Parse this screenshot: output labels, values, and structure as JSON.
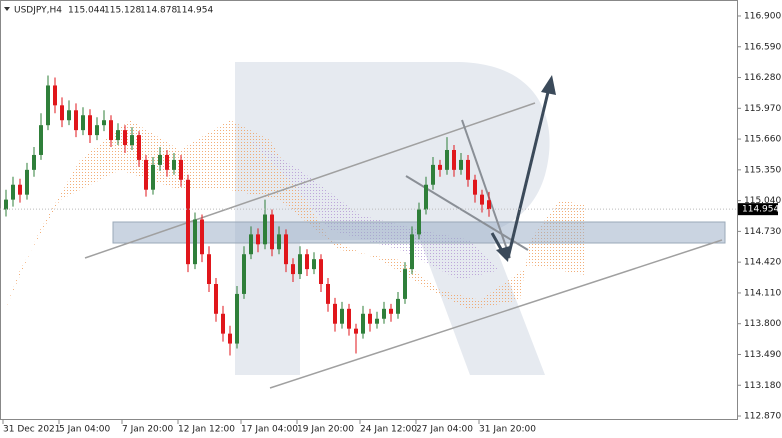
{
  "chart_data": {
    "type": "candlestick",
    "symbol": "USDJPY,H4",
    "categories": [
      "31 Dec 2021",
      null,
      null,
      null,
      null,
      null,
      null,
      null,
      "5 Jan 04:00",
      null,
      null,
      null,
      null,
      null,
      null,
      null,
      null,
      "7 Jan 20:00",
      null,
      null,
      null,
      null,
      null,
      null,
      null,
      "12 Jan 12:00",
      null,
      null,
      null,
      null,
      null,
      null,
      null,
      null,
      "17 Jan 04:00",
      null,
      null,
      null,
      null,
      null,
      null,
      null,
      "19 Jan 20:00",
      null,
      null,
      null,
      null,
      null,
      null,
      null,
      null,
      "24 Jan 12:00",
      null,
      null,
      null,
      null,
      null,
      null,
      null,
      "27 Jan 04:00",
      null,
      null,
      null,
      null,
      null,
      null,
      null,
      null,
      "31 Jan 20:00",
      null
    ],
    "candles": [
      [
        114.95,
        115.15,
        114.88,
        115.05
      ],
      [
        115.05,
        115.28,
        114.98,
        115.2
      ],
      [
        115.2,
        115.26,
        115.02,
        115.1
      ],
      [
        115.1,
        115.42,
        115.05,
        115.35
      ],
      [
        115.35,
        115.58,
        115.28,
        115.5
      ],
      [
        115.5,
        115.92,
        115.45,
        115.8
      ],
      [
        115.8,
        116.3,
        115.75,
        116.2
      ],
      [
        116.2,
        116.28,
        115.92,
        116.0
      ],
      [
        116.0,
        116.08,
        115.78,
        115.85
      ],
      [
        115.85,
        116.05,
        115.8,
        115.95
      ],
      [
        115.95,
        116.02,
        115.68,
        115.75
      ],
      [
        115.75,
        115.98,
        115.7,
        115.9
      ],
      [
        115.9,
        115.96,
        115.62,
        115.7
      ],
      [
        115.7,
        115.88,
        115.65,
        115.8
      ],
      [
        115.8,
        115.95,
        115.74,
        115.85
      ],
      [
        115.85,
        115.9,
        115.58,
        115.65
      ],
      [
        115.65,
        115.82,
        115.6,
        115.75
      ],
      [
        115.75,
        115.8,
        115.52,
        115.6
      ],
      [
        115.6,
        115.78,
        115.55,
        115.7
      ],
      [
        115.7,
        115.74,
        115.38,
        115.45
      ],
      [
        115.45,
        115.5,
        115.08,
        115.15
      ],
      [
        115.15,
        115.48,
        115.1,
        115.4
      ],
      [
        115.4,
        115.58,
        115.34,
        115.5
      ],
      [
        115.5,
        115.55,
        115.28,
        115.35
      ],
      [
        115.35,
        115.52,
        115.3,
        115.45
      ],
      [
        115.45,
        115.5,
        115.18,
        115.25
      ],
      [
        115.25,
        115.3,
        114.32,
        114.4
      ],
      [
        114.4,
        114.92,
        114.35,
        114.85
      ],
      [
        114.85,
        114.9,
        114.42,
        114.5
      ],
      [
        114.5,
        114.58,
        114.12,
        114.2
      ],
      [
        114.2,
        114.26,
        113.82,
        113.9
      ],
      [
        113.9,
        113.98,
        113.62,
        113.7
      ],
      [
        113.7,
        113.78,
        113.48,
        113.6
      ],
      [
        113.6,
        114.18,
        113.55,
        114.1
      ],
      [
        114.1,
        114.58,
        114.05,
        114.5
      ],
      [
        114.5,
        114.78,
        114.45,
        114.7
      ],
      [
        114.7,
        114.76,
        114.52,
        114.6
      ],
      [
        114.6,
        115.05,
        114.55,
        114.9
      ],
      [
        114.9,
        114.95,
        114.48,
        114.55
      ],
      [
        114.55,
        114.78,
        114.5,
        114.7
      ],
      [
        114.7,
        114.75,
        114.32,
        114.4
      ],
      [
        114.4,
        114.46,
        114.22,
        114.3
      ],
      [
        114.3,
        114.58,
        114.25,
        114.5
      ],
      [
        114.5,
        114.55,
        114.28,
        114.35
      ],
      [
        114.35,
        114.52,
        114.3,
        114.45
      ],
      [
        114.45,
        114.5,
        114.12,
        114.2
      ],
      [
        114.2,
        114.26,
        113.92,
        114.0
      ],
      [
        114.0,
        114.06,
        113.72,
        113.8
      ],
      [
        113.8,
        114.02,
        113.75,
        113.95
      ],
      [
        113.95,
        114.0,
        113.68,
        113.75
      ],
      [
        113.75,
        113.8,
        113.5,
        113.7
      ],
      [
        113.7,
        113.98,
        113.65,
        113.9
      ],
      [
        113.9,
        113.95,
        113.72,
        113.8
      ],
      [
        113.8,
        113.92,
        113.75,
        113.85
      ],
      [
        113.85,
        114.02,
        113.8,
        113.95
      ],
      [
        113.95,
        114.0,
        113.82,
        113.9
      ],
      [
        113.9,
        114.12,
        113.85,
        114.05
      ],
      [
        114.05,
        114.42,
        114.0,
        114.35
      ],
      [
        114.35,
        114.78,
        114.3,
        114.7
      ],
      [
        114.7,
        115.02,
        114.65,
        114.95
      ],
      [
        114.95,
        115.28,
        114.9,
        115.2
      ],
      [
        115.2,
        115.48,
        115.15,
        115.4
      ],
      [
        115.4,
        115.45,
        115.28,
        115.35
      ],
      [
        115.35,
        115.68,
        115.3,
        115.55
      ],
      [
        115.55,
        115.6,
        115.28,
        115.35
      ],
      [
        115.35,
        115.52,
        115.3,
        115.45
      ],
      [
        115.45,
        115.5,
        115.18,
        115.25
      ],
      [
        115.25,
        115.3,
        115.02,
        115.1
      ],
      [
        115.1,
        115.15,
        114.92,
        115.0
      ],
      [
        115.044,
        115.128,
        114.878,
        114.954
      ]
    ],
    "up_color": "#2f7f3a",
    "down_color": "#e0161b",
    "ylim": [
      112.83,
      117.061
    ],
    "yticks": [
      {
        "value": 116.9,
        "label": "116.900"
      },
      {
        "value": 116.59,
        "label": "116.590"
      },
      {
        "value": 116.28,
        "label": "116.280"
      },
      {
        "value": 115.97,
        "label": "115.970"
      },
      {
        "value": 115.66,
        "label": "115.660"
      },
      {
        "value": 115.35,
        "label": "115.350"
      },
      {
        "value": 115.04,
        "label": "115.040"
      },
      {
        "value": 114.73,
        "label": "114.730"
      },
      {
        "value": 114.42,
        "label": "114.420"
      },
      {
        "value": 114.11,
        "label": "114.110"
      },
      {
        "value": 113.8,
        "label": "113.800"
      },
      {
        "value": 113.49,
        "label": "113.490"
      },
      {
        "value": 113.18,
        "label": "113.180"
      },
      {
        "value": 112.87,
        "label": "112.870"
      }
    ],
    "grid": false
  }
}
